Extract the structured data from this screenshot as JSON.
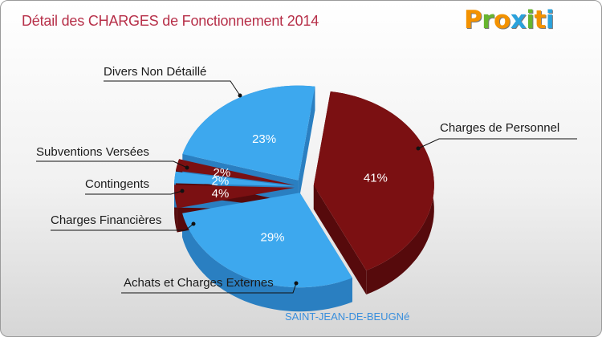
{
  "title": "Détail des CHARGES de Fonctionnement 2014",
  "logo": {
    "letters": [
      "P",
      "r",
      "o",
      "x",
      "i",
      "t",
      "i"
    ],
    "colors": [
      "#f39200",
      "#67b52f",
      "#f39200",
      "#2aa2dc",
      "#67b52f",
      "#f39200",
      "#2aa2dc"
    ]
  },
  "commune": "SAINT-JEAN-DE-BEUGNé",
  "colors": {
    "blue": "#3da8ee",
    "blue_dark": "#2a7fc1",
    "red": "#7b1012",
    "red_dark": "#560a0c",
    "title": "#b73049"
  },
  "chart_data": {
    "type": "pie",
    "title": "Détail des CHARGES de Fonctionnement 2014",
    "slices": [
      {
        "label": "Charges de Personnel",
        "value": 41,
        "pct_label": "41%",
        "color": "red"
      },
      {
        "label": "Achats et Charges Externes",
        "value": 29,
        "pct_label": "29%",
        "color": "blue"
      },
      {
        "label": "Charges Financières",
        "value": 4,
        "pct_label": "4%",
        "color": "red"
      },
      {
        "label": "Contingents",
        "value": 2,
        "pct_label": "2%",
        "color": "blue"
      },
      {
        "label": "Subventions Versées",
        "value": 2,
        "pct_label": "2%",
        "color": "red"
      },
      {
        "label": "Divers Non Détaillé",
        "value": 23,
        "pct_label": "23%",
        "color": "blue"
      }
    ]
  }
}
